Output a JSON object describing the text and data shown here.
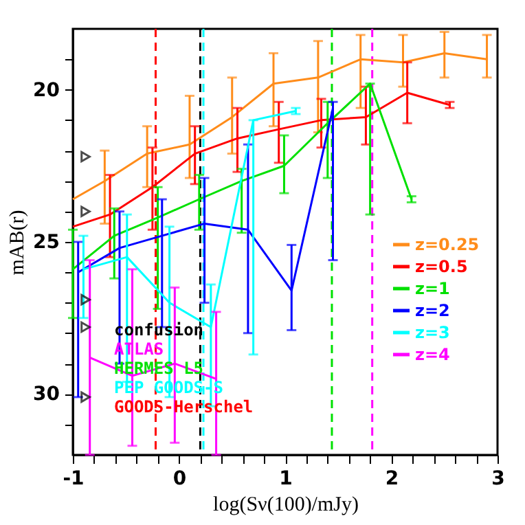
{
  "chart_data": {
    "type": "line",
    "xlabel": "log(Sν(100)/mJy)",
    "ylabel": "mAB(r)",
    "xlim": [
      -1,
      3
    ],
    "ylim": [
      32,
      18
    ],
    "xticks": [
      -1,
      {
        "value": -0.8,
        "label": null
      },
      {
        "value": -0.6,
        "label": null
      },
      {
        "value": -0.4,
        "label": null
      },
      {
        "value": -0.2,
        "label": null
      },
      0,
      {
        "value": 0.2,
        "label": null
      },
      {
        "value": 0.4,
        "label": null
      },
      {
        "value": 0.6,
        "label": null
      },
      {
        "value": 0.8,
        "label": null
      },
      1,
      {
        "value": 1.2,
        "label": null
      },
      {
        "value": 1.4,
        "label": null
      },
      {
        "value": 1.6,
        "label": null
      },
      {
        "value": 1.8,
        "label": null
      },
      2,
      {
        "value": 2.2,
        "label": null
      },
      {
        "value": 2.4,
        "label": null
      },
      {
        "value": 2.6,
        "label": null
      },
      {
        "value": 2.8,
        "label": null
      },
      3
    ],
    "yticks": [
      {
        "value": 19,
        "label": null
      },
      20,
      {
        "value": 21,
        "label": null
      },
      {
        "value": 22,
        "label": null
      },
      {
        "value": 23,
        "label": null
      },
      {
        "value": 24,
        "label": null
      },
      25,
      {
        "value": 26,
        "label": null
      },
      {
        "value": 27,
        "label": null
      },
      {
        "value": 28,
        "label": null
      },
      {
        "value": 29,
        "label": null
      },
      30,
      {
        "value": 31,
        "label": null
      }
    ],
    "grid": false,
    "legend": "right",
    "line_style": "solid",
    "series": [
      {
        "name": "z=0.25",
        "color": "#ff8c1a",
        "x": [
          -1,
          -0.7,
          -0.3,
          0.1,
          0.5,
          0.89,
          1.31,
          1.71,
          2.11,
          2.5,
          2.9
        ],
        "values": [
          23.6,
          23.0,
          22.1,
          21.8,
          20.9,
          19.8,
          19.6,
          19.0,
          19.1,
          18.8,
          19.0
        ],
        "errors": [
          null,
          [
            22.0,
            24.4
          ],
          [
            21.2,
            23.2
          ],
          [
            20.2,
            22.9
          ],
          [
            19.6,
            22.1
          ],
          [
            18.8,
            21.2
          ],
          [
            18.4,
            21.4
          ],
          [
            18.2,
            20.6
          ],
          [
            18.2,
            19.9
          ],
          [
            18.1,
            19.6
          ],
          [
            18.2,
            19.6
          ]
        ]
      },
      {
        "name": "z=0.5",
        "color": "#ff0000",
        "x": [
          -1,
          -0.65,
          -0.25,
          0.15,
          0.55,
          0.94,
          1.34,
          1.76,
          2.15,
          2.55
        ],
        "values": [
          24.5,
          24.1,
          23.2,
          22.1,
          21.6,
          21.3,
          21.0,
          20.9,
          20.1,
          20.5
        ],
        "errors": [
          null,
          [
            22.8,
            25.5
          ],
          [
            21.9,
            24.6
          ],
          [
            21.2,
            23.1
          ],
          [
            20.6,
            22.7
          ],
          [
            20.4,
            22.4
          ],
          [
            20.3,
            21.9
          ],
          [
            19.9,
            21.8
          ],
          [
            19.1,
            21.1
          ],
          [
            20.4,
            20.6
          ]
        ]
      },
      {
        "name": "z=1",
        "color": "#00e000",
        "x": [
          -1,
          -0.61,
          -0.2,
          0.19,
          0.59,
          0.99,
          1.4,
          1.8,
          2.19
        ],
        "values": [
          25.9,
          24.8,
          24.2,
          23.6,
          23.0,
          22.5,
          21.1,
          19.8,
          23.6
        ],
        "errors": [
          [
            24.6,
            27.5
          ],
          [
            23.9,
            26.2
          ],
          [
            23.2,
            27.2
          ],
          [
            22.8,
            24.6
          ],
          [
            22.6,
            24.7
          ],
          [
            21.5,
            23.4
          ],
          [
            20.4,
            22.9
          ],
          [
            19.8,
            24.1
          ],
          [
            23.5,
            23.7
          ]
        ]
      },
      {
        "name": "z=2",
        "color": "#0000ff",
        "x": [
          -0.95,
          -0.56,
          -0.16,
          0.24,
          0.65,
          1.06,
          1.45
        ],
        "values": [
          26.0,
          25.2,
          24.8,
          24.4,
          24.6,
          26.6,
          20.6
        ],
        "errors": [
          [
            25.0,
            30.1
          ],
          [
            24.0,
            29.0
          ],
          [
            23.6,
            27.8
          ],
          [
            22.9,
            27.0
          ],
          [
            21.8,
            28.0
          ],
          [
            25.1,
            27.9
          ],
          [
            20.4,
            25.6
          ]
        ]
      },
      {
        "name": "z=3",
        "color": "#00ffff",
        "x": [
          -0.9,
          -0.49,
          -0.09,
          0.3,
          0.7,
          1.1
        ],
        "values": [
          25.9,
          25.5,
          27.0,
          27.8,
          21.0,
          20.7
        ],
        "errors": [
          [
            24.8,
            27.5
          ],
          [
            24.1,
            29.6
          ],
          [
            24.5,
            30.1
          ],
          [
            26.4,
            30.4
          ],
          [
            21.0,
            28.7
          ],
          [
            20.6,
            20.8
          ]
        ]
      },
      {
        "name": "z=4",
        "color": "#ff00ff",
        "x": [
          -0.84,
          -0.44,
          -0.04,
          0.35
        ],
        "values": [
          28.8,
          29.4,
          29.0,
          29.5
        ],
        "errors": [
          [
            25.6,
            32
          ],
          [
            25.9,
            31.7
          ],
          [
            26.5,
            31.6
          ],
          [
            27.3,
            32
          ]
        ]
      },
      {
        "color": "#000000",
        "type": "scatter",
        "marker": "triangle",
        "x": [
          -0.88,
          -0.88,
          -0.88,
          -0.88,
          -0.88
        ],
        "values": [
          22.2,
          24.0,
          26.9,
          27.8,
          30.1
        ]
      }
    ],
    "ref_lines": [
      {
        "axis": "x",
        "value": 0.2,
        "label": "confusion",
        "color": "#000000",
        "line_style": "dashed"
      },
      {
        "axis": "x",
        "value": 1.82,
        "label": "ATLAS",
        "color": "#ff00ff",
        "line_style": "dashed"
      },
      {
        "axis": "x",
        "value": 1.44,
        "label": "HERMES L5",
        "color": "#00e000",
        "line_style": "dashed"
      },
      {
        "axis": "x",
        "value": 0.23,
        "label": "PEP GOODS-S",
        "color": "#00ffff",
        "line_style": "dashed"
      },
      {
        "axis": "x",
        "value": -0.22,
        "label": "GOODS-Herschel",
        "color": "#ff0000",
        "line_style": "dashed"
      }
    ]
  }
}
